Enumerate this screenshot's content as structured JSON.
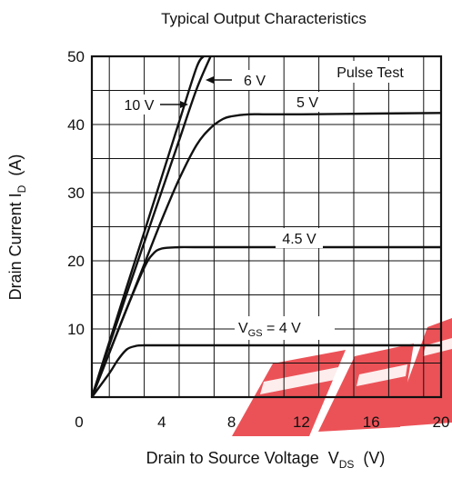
{
  "chart_data": {
    "type": "line",
    "title": "Typical Output Characteristics",
    "xlabel": {
      "main": "Drain to Source Voltage  V",
      "sub": "DS",
      "unit": "  (V)"
    },
    "ylabel": {
      "main": "Drain Current  I",
      "sub": "D",
      "unit": "  (A)"
    },
    "xlim": [
      0,
      20
    ],
    "ylim": [
      0,
      50
    ],
    "x_ticks": [
      0,
      4,
      8,
      12,
      16,
      20
    ],
    "y_ticks": [
      10,
      20,
      30,
      40,
      50
    ],
    "x_tick_labels": [
      "0",
      "4",
      "8",
      "12",
      "16",
      "20"
    ],
    "y_tick_labels": [
      "10",
      "20",
      "30",
      "40",
      "50"
    ],
    "grid": true,
    "legend": "none",
    "annotation": "Pulse Test",
    "series": [
      {
        "name": "10 V",
        "x": [
          0,
          1,
          2,
          3,
          4,
          5,
          6,
          6.4
        ],
        "y": [
          0,
          8.1,
          16.2,
          24.2,
          32.3,
          40.4,
          48.4,
          50
        ]
      },
      {
        "name": "6 V",
        "x": [
          0,
          1,
          2,
          3,
          4,
          5,
          6,
          6.8
        ],
        "y": [
          0,
          7.6,
          15.2,
          22.7,
          30.2,
          37.7,
          45.2,
          50
        ]
      },
      {
        "name": "5 V",
        "x": [
          0,
          1,
          2,
          3,
          4,
          5,
          6,
          6.8,
          7.5,
          8,
          9,
          10,
          12,
          16,
          20
        ],
        "y": [
          0,
          6.5,
          13.0,
          19.5,
          26.0,
          32.0,
          37.0,
          39.5,
          40.8,
          41.2,
          41.5,
          41.5,
          41.5,
          41.6,
          41.7
        ]
      },
      {
        "name": "4.5 V",
        "x": [
          0,
          1,
          2,
          3,
          3.5,
          4,
          5,
          6,
          10,
          16,
          20
        ],
        "y": [
          0,
          6.5,
          13.0,
          19.0,
          21.0,
          21.8,
          22.0,
          22.0,
          22.0,
          22.0,
          22.0
        ]
      },
      {
        "name": "V_GS = 4 V",
        "x": [
          0,
          1,
          1.5,
          2,
          2.5,
          3,
          5,
          10,
          20
        ],
        "y": [
          0,
          3.5,
          5.5,
          7.0,
          7.5,
          7.6,
          7.6,
          7.6,
          7.6
        ]
      }
    ],
    "curve_labels": [
      {
        "text": "10 V",
        "arrow": "right"
      },
      {
        "text": "6 V",
        "arrow": "left"
      },
      {
        "text": "5 V"
      },
      {
        "text": "4.5 V"
      },
      {
        "text": "V",
        "sub": "GS",
        "rest": " = 4 V"
      }
    ]
  },
  "watermark": {
    "text": "FEP",
    "color": "#e8353a"
  }
}
